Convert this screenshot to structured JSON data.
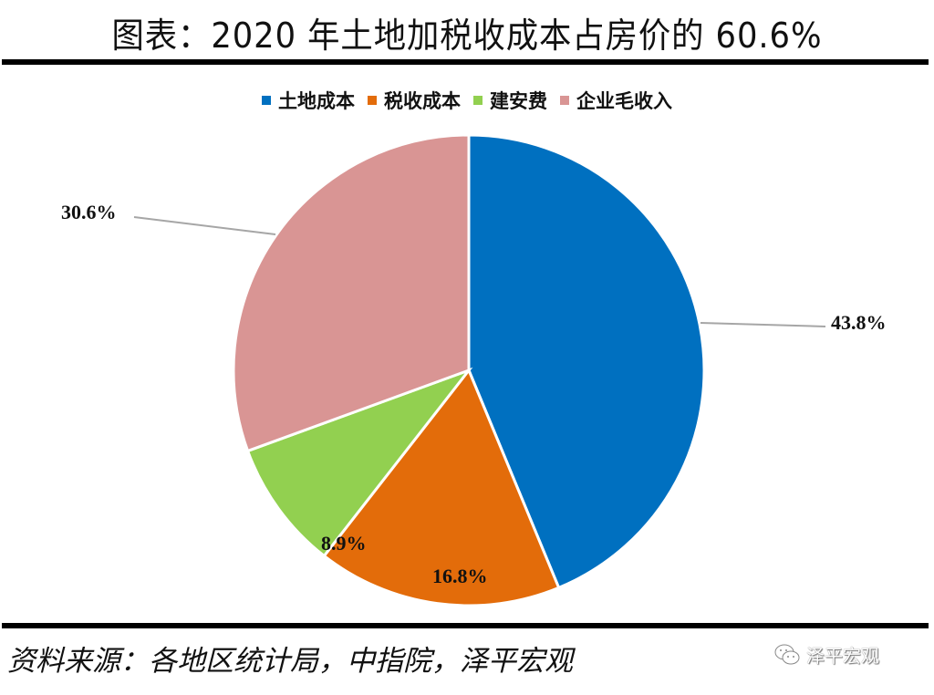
{
  "header": {
    "title": "图表：2020 年土地加税收成本占房价的 60.6%"
  },
  "legend": {
    "items": [
      {
        "label": "土地成本",
        "color": "#0070C0"
      },
      {
        "label": "税收成本",
        "color": "#E36C0A"
      },
      {
        "label": "建安费",
        "color": "#92D050"
      },
      {
        "label": "企业毛收入",
        "color": "#D99594"
      }
    ]
  },
  "chart_data": {
    "type": "pie",
    "title": "图表：2020 年土地加税收成本占房价的 60.6%",
    "categories": [
      "土地成本",
      "税收成本",
      "建安费",
      "企业毛收入"
    ],
    "values": [
      43.8,
      16.8,
      8.9,
      30.6
    ],
    "unit": "%",
    "colors": [
      "#0070C0",
      "#E36C0A",
      "#92D050",
      "#D99594"
    ],
    "data_labels": [
      "43.8%",
      "16.8%",
      "8.9%",
      "30.6%"
    ],
    "start_angle_deg": 0,
    "direction": "clockwise",
    "legend_position": "top"
  },
  "labels": {
    "land": "43.8%",
    "tax": "16.8%",
    "construction": "8.9%",
    "gross_income": "30.6%"
  },
  "footer": {
    "source": "资料来源：各地区统计局，中指院，泽平宏观",
    "watermark": "泽平宏观"
  }
}
